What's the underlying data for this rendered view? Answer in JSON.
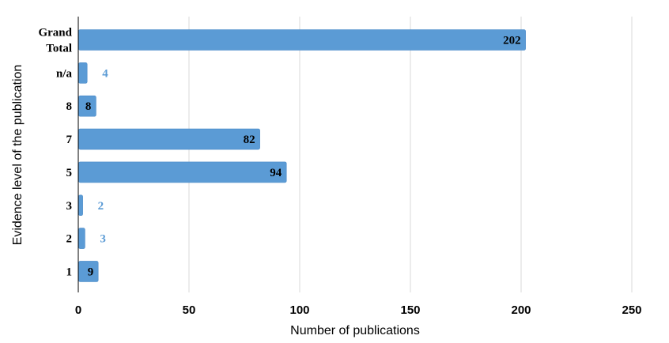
{
  "chart_data": {
    "type": "bar",
    "orientation": "horizontal",
    "xlabel": "Number of publications",
    "ylabel": "Evidence level of the publication",
    "xlim": [
      0,
      250
    ],
    "xticks": [
      0,
      50,
      100,
      150,
      200,
      250
    ],
    "grid": "vertical",
    "categories": [
      {
        "label": [
          "Grand",
          "Total"
        ],
        "value": 202
      },
      {
        "label": [
          "n/a"
        ],
        "value": 4
      },
      {
        "label": [
          "8"
        ],
        "value": 8
      },
      {
        "label": [
          "7"
        ],
        "value": 82
      },
      {
        "label": [
          "5"
        ],
        "value": 94
      },
      {
        "label": [
          "3"
        ],
        "value": 2
      },
      {
        "label": [
          "2"
        ],
        "value": 3
      },
      {
        "label": [
          "1"
        ],
        "value": 9
      }
    ],
    "colors": {
      "bar": "#5b9bd5",
      "bar_stroke": "#4a8ac7",
      "label_inside": "#000000",
      "label_outside": "#5b9bd5",
      "grid": "#d9d9d9",
      "axis": "#000000"
    }
  }
}
